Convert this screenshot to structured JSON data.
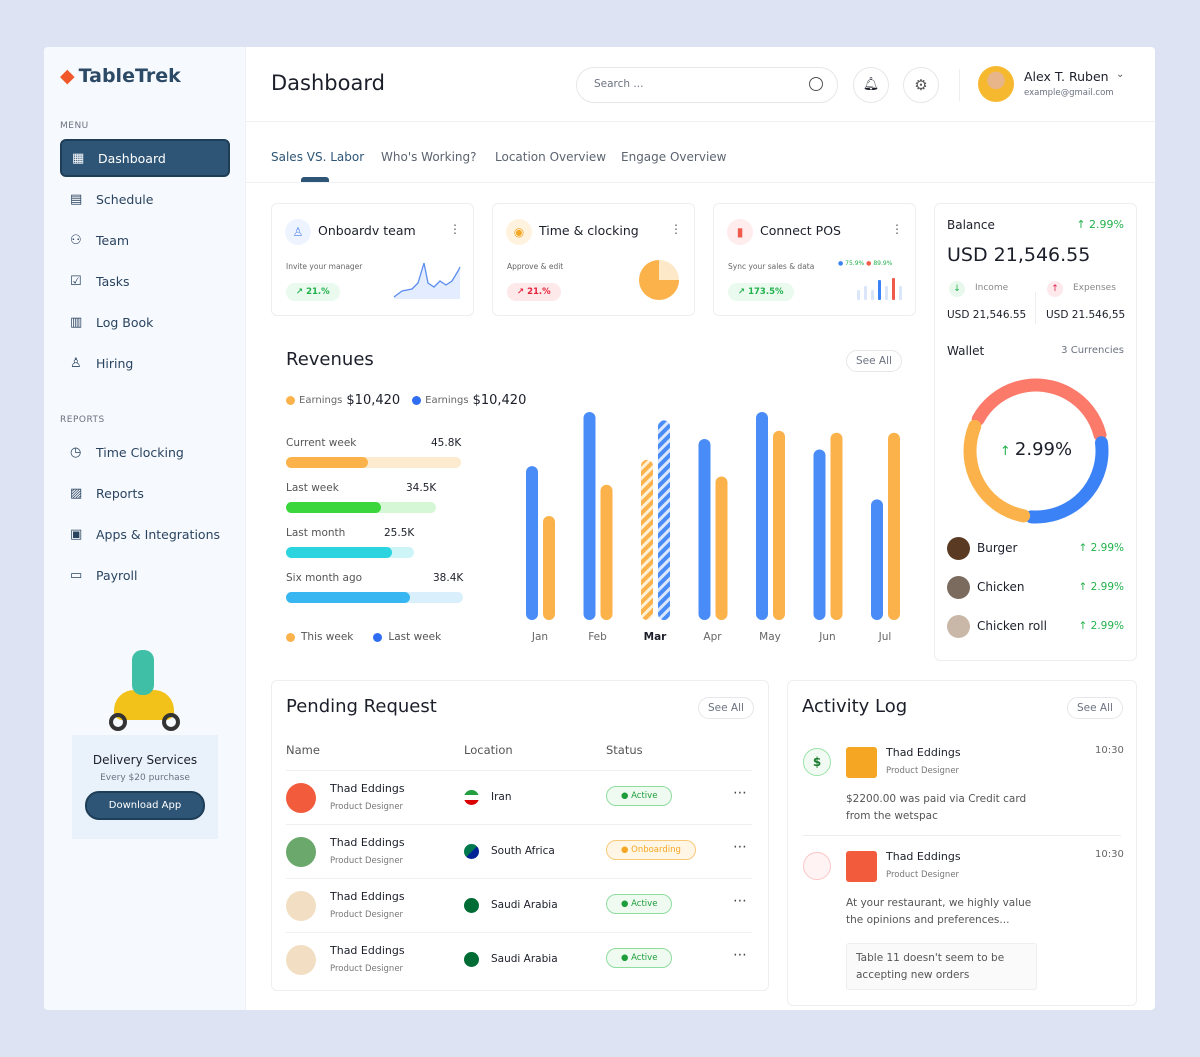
{
  "brand": "TableTrek",
  "sidebar": {
    "menu_title": "MENU",
    "reports_title": "REPORTS",
    "menu": [
      {
        "label": "Dashboard",
        "icon": "grid-icon",
        "active": true
      },
      {
        "label": "Schedule",
        "icon": "calendar-icon"
      },
      {
        "label": "Team",
        "icon": "team-icon"
      },
      {
        "label": "Tasks",
        "icon": "tasks-icon"
      },
      {
        "label": "Log Book",
        "icon": "book-icon"
      },
      {
        "label": "Hiring",
        "icon": "user-add-icon"
      }
    ],
    "reports": [
      {
        "label": "Time Clocking",
        "icon": "clock-icon"
      },
      {
        "label": "Reports",
        "icon": "chart-icon"
      },
      {
        "label": "Apps & Integrations",
        "icon": "chip-icon"
      },
      {
        "label": "Payroll",
        "icon": "wallet-icon"
      }
    ],
    "promo": {
      "title": "Delivery Services",
      "subtitle": "Every $20 purchase",
      "button": "Download App"
    }
  },
  "header": {
    "title": "Dashboard",
    "search_placeholder": "Search ...",
    "user_name": "Alex T. Ruben",
    "user_email": "example@gmail.com"
  },
  "tabs": [
    "Sales VS. Labor",
    "Who's Working?",
    "Location Overview",
    "Engage Overview"
  ],
  "widgets": [
    {
      "title": "Onboardv team",
      "subtitle": "Invite your manager",
      "change": "21.%",
      "trend": "up"
    },
    {
      "title": "Time & clocking",
      "subtitle": "Approve & edit",
      "change": "21.%",
      "trend": "down"
    },
    {
      "title": "Connect POS",
      "subtitle": "Sync your sales & data",
      "change": "173.5%",
      "trend": "up",
      "legend": [
        "75.9%",
        "89.9%"
      ]
    }
  ],
  "balance": {
    "title": "Balance",
    "change": "2.99%",
    "amount": "USD 21,546.55",
    "income_label": "Income",
    "income": "USD 21,546.55",
    "expenses_label": "Expenses",
    "expenses": "USD 21.546,55",
    "wallet": "Wallet",
    "currencies": "3 Currencies",
    "donut_label": "2.99%",
    "items": [
      {
        "name": "Burger",
        "change": "2.99%"
      },
      {
        "name": "Chicken",
        "change": "2.99%"
      },
      {
        "name": "Chicken roll",
        "change": "2.99%"
      }
    ],
    "donut": [
      {
        "value": 40,
        "color": "#fb7a6a"
      },
      {
        "value": 30,
        "color": "#3b82f6"
      },
      {
        "value": 30,
        "color": "#fbb24a"
      }
    ]
  },
  "revenues": {
    "title": "Revenues",
    "see_all": "See All",
    "earn1_label": "Earnings",
    "earn1": "$10,420",
    "earn2_label": "Earnings",
    "earn2": "$10,420",
    "progress": [
      {
        "label": "Current week",
        "value": "45.8K",
        "fill": 0.47,
        "color": "#fbb24a",
        "track": "#fdebd0"
      },
      {
        "label": "Last week",
        "value": "34.5K",
        "fill": 0.63,
        "color": "#3bd63b",
        "track": "#d5f7d5"
      },
      {
        "label": "Last month",
        "value": "25.5K",
        "fill": 0.83,
        "color": "#2cd4e0",
        "track": "#cdf4f7"
      },
      {
        "label": "Six month ago",
        "value": "38.4K",
        "fill": 0.7,
        "color": "#38b6f2",
        "track": "#d9f0fc"
      }
    ],
    "legend": [
      "This week",
      "Last week"
    ]
  },
  "chart_data": {
    "type": "bar",
    "categories": [
      "Jan",
      "Feb",
      "Mar",
      "Apr",
      "May",
      "Jun",
      "Jul"
    ],
    "highlight": "Mar",
    "series": [
      {
        "values": [
          74,
          100,
          96,
          87,
          100,
          82,
          58
        ],
        "color": "#4a8cf7"
      },
      {
        "values": [
          50,
          65,
          77,
          69,
          91,
          90,
          90
        ],
        "color": "#fbb24a"
      }
    ],
    "ylim": [
      0,
      100
    ],
    "grid": false
  },
  "pending": {
    "title": "Pending Request",
    "see_all": "See All",
    "columns": [
      "Name",
      "Location",
      "Status"
    ],
    "rows": [
      {
        "name": "Thad Eddings",
        "role": "Product Designer",
        "location": "Iran",
        "status": "Active",
        "avatar": "#f25c3c"
      },
      {
        "name": "Thad Eddings",
        "role": "Product Designer",
        "location": "South Africa",
        "status": "Onboarding",
        "avatar": "#6ba86b"
      },
      {
        "name": "Thad Eddings",
        "role": "Product Designer",
        "location": "Saudi Arabia",
        "status": "Active",
        "avatar": "#f2dfc3"
      },
      {
        "name": "Thad Eddings",
        "role": "Product Designer",
        "location": "Saudi Arabia",
        "status": "Active",
        "avatar": "#f2dfc3"
      }
    ]
  },
  "activity": {
    "title": "Activity Log",
    "see_all": "See All",
    "items": [
      {
        "name": "Thad Eddings",
        "role": "Product Designer",
        "time": "10:30",
        "text1": "$2200.00 was paid via Credit card",
        "text2": "from the wetspac"
      },
      {
        "name": "Thad Eddings",
        "role": "Product Designer",
        "time": "10:30",
        "text1": "At your restaurant, we highly value",
        "text2": "the opinions and preferences...",
        "note1": "Table 11 doesn't seem to be",
        "note2": "accepting new orders"
      }
    ]
  }
}
